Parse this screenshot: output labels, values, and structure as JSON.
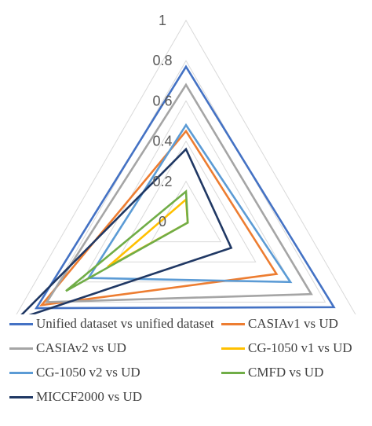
{
  "chart_data": {
    "type": "radar",
    "axes": [
      "",
      "",
      ""
    ],
    "rlim": [
      0,
      1
    ],
    "ticks": [
      "0",
      "0.2",
      "0.4",
      "0.6",
      "0.8",
      "1"
    ],
    "tick_values": [
      0,
      0.2,
      0.4,
      0.6,
      0.8,
      1
    ],
    "grid": true,
    "legend_position": "bottom",
    "series": [
      {
        "name": "Unified dataset vs unified dataset",
        "color": "#4472C4",
        "values": [
          0.77,
          0.85,
          0.86
        ]
      },
      {
        "name": "CASIAv1 vs UD",
        "color": "#ED7D31",
        "values": [
          0.45,
          0.52,
          0.83
        ]
      },
      {
        "name": "CASIAv2 vs UD",
        "color": "#A5A5A5",
        "values": [
          0.68,
          0.72,
          0.8
        ]
      },
      {
        "name": "CG-1050 v1 vs UD",
        "color": "#FFC000",
        "values": [
          0.11,
          0.01,
          0.45
        ]
      },
      {
        "name": "CG-1050 v2 vs UD",
        "color": "#5B9BD5",
        "values": [
          0.48,
          0.6,
          0.56
        ]
      },
      {
        "name": "CMFD vs UD",
        "color": "#70AD47",
        "values": [
          0.15,
          0.01,
          0.69
        ]
      },
      {
        "name": "MICCF2000 vs UD",
        "color": "#203864",
        "values": [
          0.36,
          0.26,
          0.97
        ]
      }
    ]
  }
}
